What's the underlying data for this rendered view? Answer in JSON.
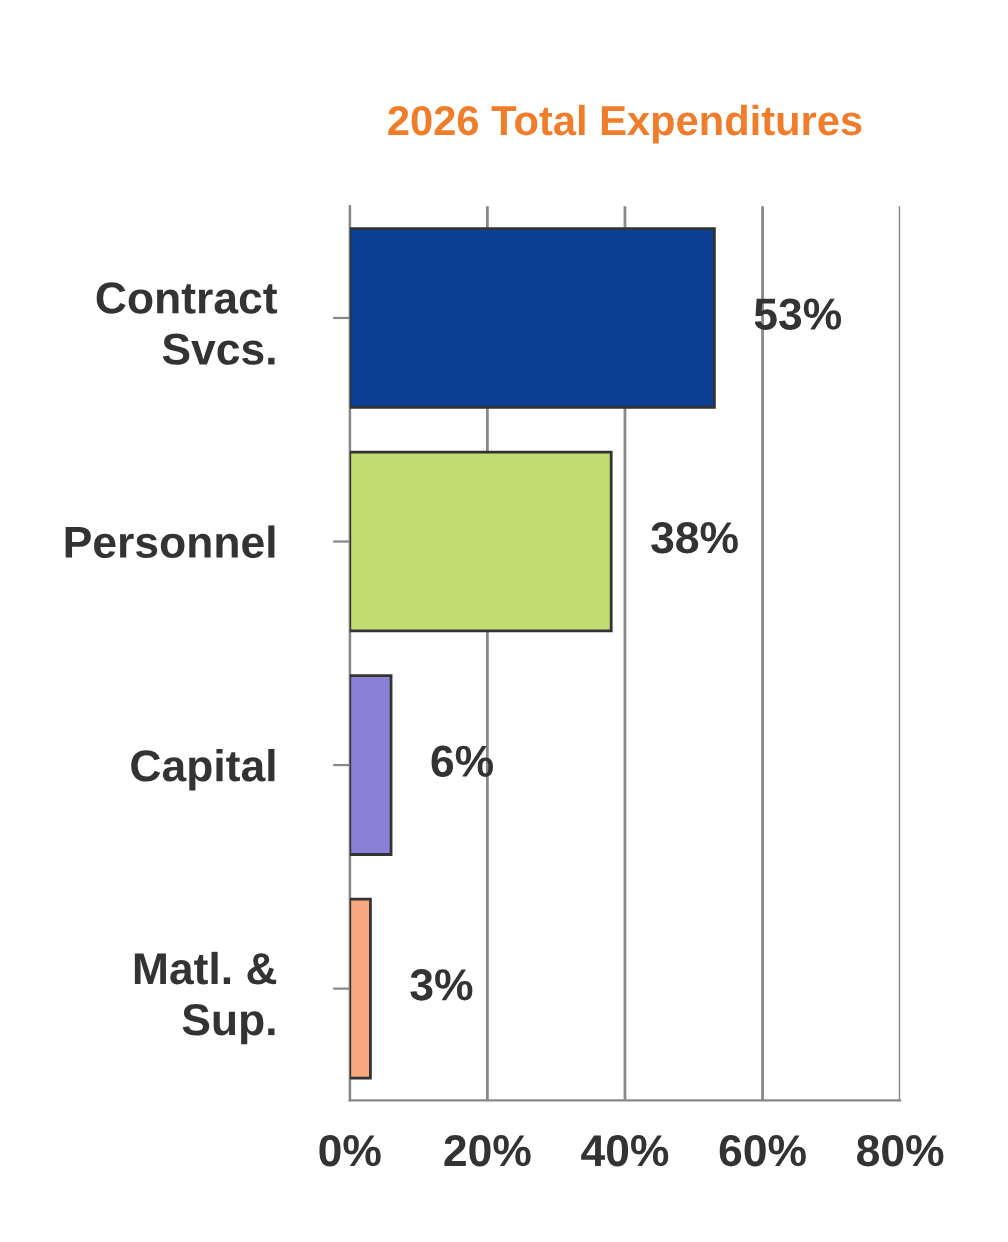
{
  "chart_data": {
    "type": "bar",
    "orientation": "horizontal",
    "title": "2026 Total Expenditures",
    "categories": [
      "Contract\nSvcs.",
      "Personnel",
      "Capital",
      "Matl. &\nSup."
    ],
    "values": [
      53,
      38,
      6,
      3
    ],
    "colors": [
      "#0b3f94",
      "#c1dc70",
      "#8a80d8",
      "#f7a87e"
    ],
    "value_labels": [
      "53%",
      "38%",
      "6%",
      "3%"
    ],
    "xlim": [
      0,
      80
    ],
    "xticks": [
      {
        "value": 0,
        "label": "0%"
      },
      {
        "value": 20,
        "label": "20%"
      },
      {
        "value": 40,
        "label": "40%"
      },
      {
        "value": 60,
        "label": "60%"
      },
      {
        "value": 80,
        "label": "80%"
      }
    ],
    "grid": "x",
    "legend": false
  }
}
